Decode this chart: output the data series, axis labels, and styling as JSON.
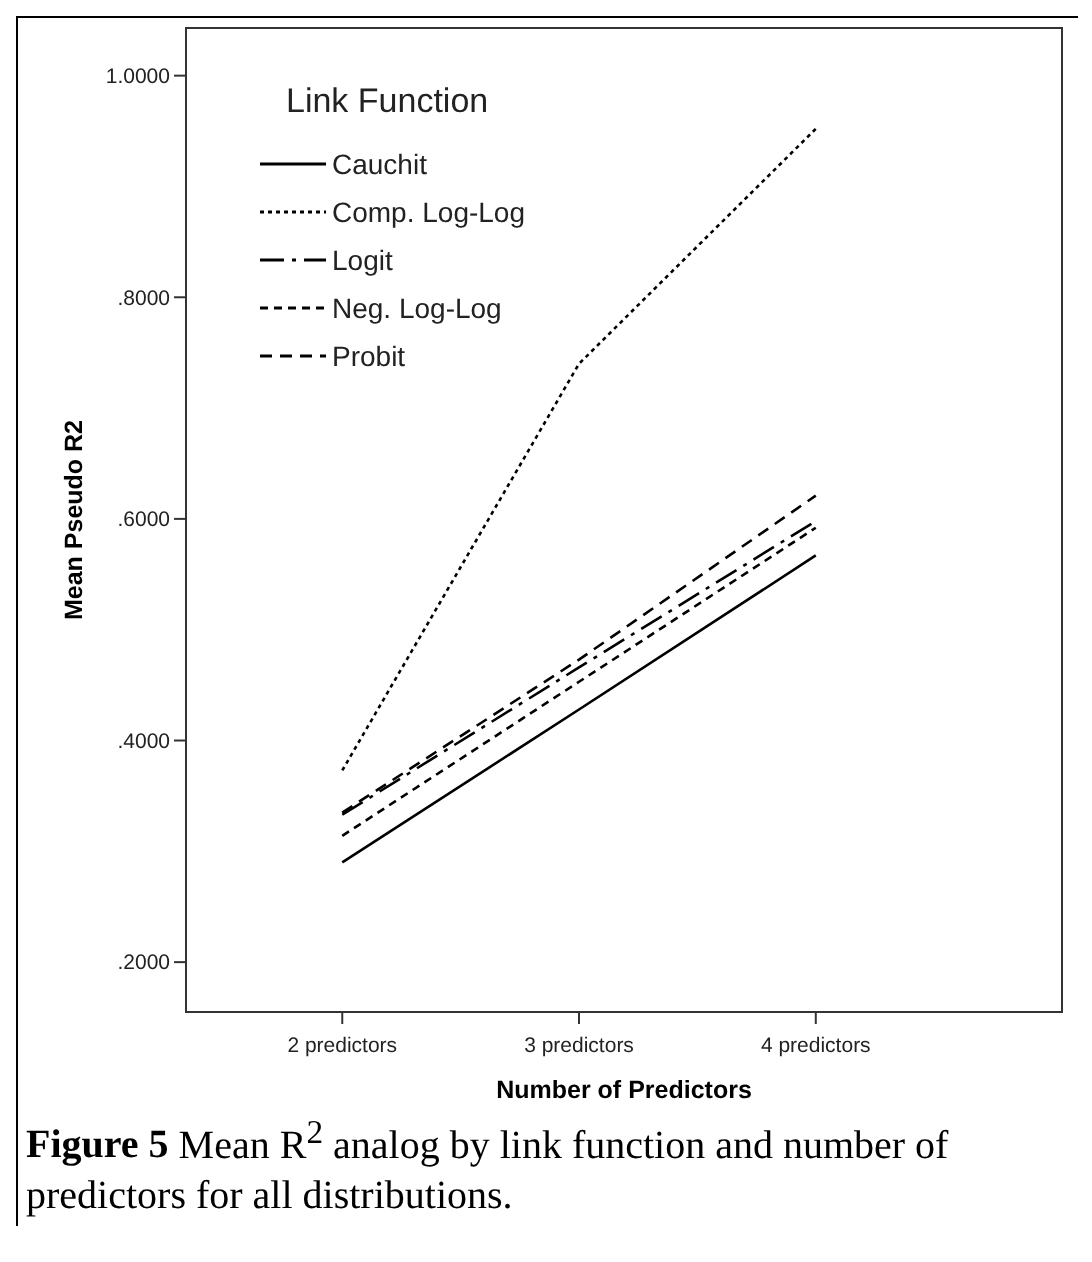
{
  "chart_data": {
    "type": "line",
    "xlabel": "Number of Predictors",
    "ylabel": "Mean Pseudo R2",
    "legend_title": "Link Function",
    "legend": "top left",
    "categories": [
      "2 predictors",
      "3 predictors",
      "4 predictors"
    ],
    "ylim": [
      0.155,
      1.043
    ],
    "yticks": [
      {
        "value": 0.2,
        "label": ".2000"
      },
      {
        "value": 0.4,
        "label": ".4000"
      },
      {
        "value": 0.6,
        "label": ".6000"
      },
      {
        "value": 0.8,
        "label": ".8000"
      },
      {
        "value": 1.0,
        "label": "1.0000"
      }
    ],
    "grid": false,
    "marker": "none",
    "series": [
      {
        "name": "Cauchit",
        "color": "#000000",
        "line_style": "solid",
        "values": [
          0.29,
          0.428,
          0.567
        ]
      },
      {
        "name": "Comp. Log-Log",
        "color": "#000000",
        "line_style": "dotted",
        "values": [
          0.373,
          0.74,
          0.952
        ]
      },
      {
        "name": "Logit",
        "color": "#000000",
        "line_style": "dashed",
        "values": [
          0.333,
          0.466,
          0.598
        ]
      },
      {
        "name": "Neg. Log-Log",
        "color": "#000000",
        "line_style": "dashed",
        "values": [
          0.314,
          0.453,
          0.592
        ]
      },
      {
        "name": "Probit",
        "color": "#000000",
        "line_style": "dashed",
        "values": [
          0.335,
          0.473,
          0.621
        ]
      }
    ],
    "annotations": [
      "Figure 5",
      "Mean R$^{2}$ analog by link function and number of predictors for all distributions."
    ]
  }
}
